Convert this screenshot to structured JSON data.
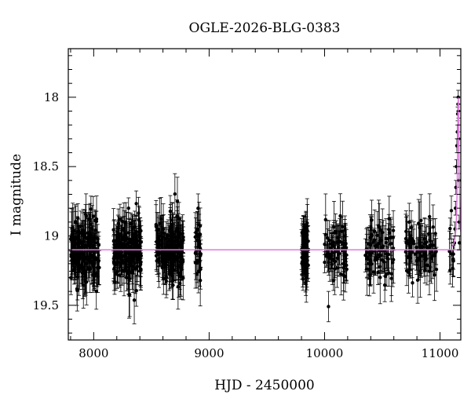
{
  "chart_data": {
    "type": "scatter",
    "title": "OGLE-2026-BLG-0383",
    "xlabel": "HJD - 2450000",
    "ylabel": "I magnitude",
    "xlim": [
      7780,
      11180
    ],
    "ylim": [
      19.75,
      17.65
    ],
    "y_inverted": true,
    "xticks": [
      8000,
      9000,
      10000,
      11000
    ],
    "yticks": [
      18,
      18.5,
      19,
      19.5
    ],
    "baseline_magnitude": 19.1,
    "colors": {
      "points": "#000000",
      "model": "#e07be0"
    },
    "seasons": [
      {
        "start": 7800,
        "end": 8050,
        "n": 180
      },
      {
        "start": 8170,
        "end": 8420,
        "n": 170
      },
      {
        "start": 8540,
        "end": 8780,
        "n": 160
      },
      {
        "start": 8880,
        "end": 8930,
        "n": 30
      },
      {
        "start": 9800,
        "end": 9860,
        "n": 60
      },
      {
        "start": 10000,
        "end": 10200,
        "n": 70
      },
      {
        "start": 10350,
        "end": 10600,
        "n": 80
      },
      {
        "start": 10700,
        "end": 10970,
        "n": 80
      },
      {
        "start": 11080,
        "end": 11120,
        "n": 10
      }
    ],
    "event": {
      "points": [
        {
          "x": 11125,
          "y": 19.05
        },
        {
          "x": 11130,
          "y": 18.95
        },
        {
          "x": 11134,
          "y": 18.8
        },
        {
          "x": 11138,
          "y": 18.65
        },
        {
          "x": 11142,
          "y": 18.5
        },
        {
          "x": 11146,
          "y": 18.35
        },
        {
          "x": 11150,
          "y": 18.25
        },
        {
          "x": 11153,
          "y": 18.12
        },
        {
          "x": 11156,
          "y": 18.05
        },
        {
          "x": 11158,
          "y": 18.0
        },
        {
          "x": 11160,
          "y": 18.1
        },
        {
          "x": 11162,
          "y": 18.3
        },
        {
          "x": 11164,
          "y": 18.6
        },
        {
          "x": 11166,
          "y": 18.9
        },
        {
          "x": 11168,
          "y": 19.05
        }
      ]
    }
  }
}
